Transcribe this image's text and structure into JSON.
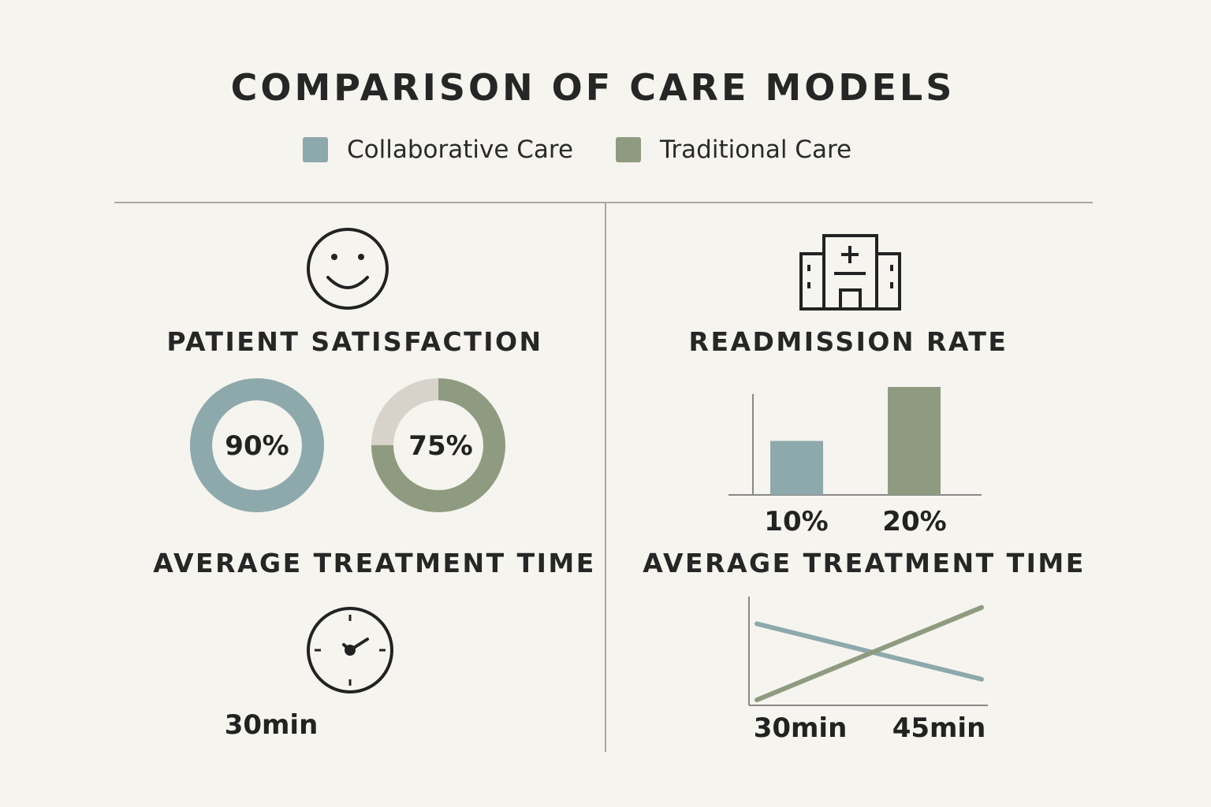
{
  "title": "COMPARISON OF CARE MODELS",
  "legend": [
    {
      "label": "Collaborative Care",
      "color": "#8ea9ab"
    },
    {
      "label": "Traditional Care",
      "color": "#8f9b80"
    }
  ],
  "left_panel": {
    "icon": "smiley-face-icon",
    "satisfaction_heading": "PATIENT SATISFACTION",
    "treatment_heading": "AVERAGE TREATMENT TIME",
    "clock_icon": "clock-icon",
    "treatment_value": "30min"
  },
  "right_panel": {
    "icon": "hospital-icon",
    "readmission_heading": "READMISSION RATE",
    "treatment_heading": "AVERAGE TREATMENT TIME"
  },
  "chart_data": [
    {
      "type": "pie",
      "subtype": "donut",
      "title": "PATIENT SATISFACTION",
      "series": [
        {
          "legend": "Collaborative Care",
          "value": 90,
          "label": "90%",
          "color": "#8ea9ab",
          "remainder_color": "#8ea9ab"
        },
        {
          "legend": "Traditional Care",
          "value": 75,
          "label": "75%",
          "color": "#8f9b80",
          "remainder_color": "#d8d3ca"
        }
      ]
    },
    {
      "type": "bar",
      "title": "READMISSION RATE",
      "categories": [
        "10%",
        "20%"
      ],
      "values": [
        10,
        20
      ],
      "colors": [
        "#8ea9ab",
        "#8f9b80"
      ],
      "ylim": [
        0,
        20
      ]
    },
    {
      "type": "line",
      "title": "AVERAGE TREATMENT TIME",
      "x_tick_labels": [
        "30min",
        "45min"
      ],
      "y_ticks_shown": false,
      "series": [
        {
          "legend": "Collaborative Care",
          "values": [
            0.75,
            0.24
          ],
          "color": "#8ea9ab"
        },
        {
          "legend": "Traditional Care",
          "values": [
            0.05,
            0.9
          ],
          "color": "#8f9b80"
        }
      ]
    }
  ]
}
